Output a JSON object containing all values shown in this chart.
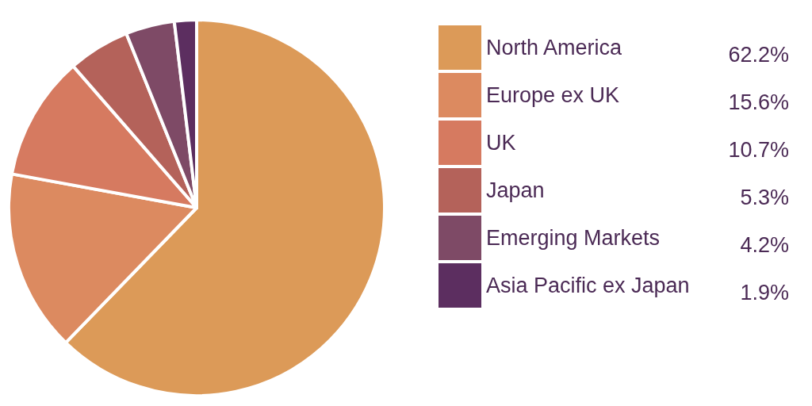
{
  "chart_data": {
    "type": "pie",
    "categories": [
      "North America",
      "Europe ex UK",
      "UK",
      "Japan",
      "Emerging Markets",
      "Asia Pacific ex Japan"
    ],
    "values": [
      62.2,
      15.6,
      10.7,
      5.3,
      4.2,
      1.9
    ],
    "colors": [
      "#dc9a58",
      "#dc8a60",
      "#d67a60",
      "#b4625a",
      "#7e4a66",
      "#5c2e60"
    ],
    "value_labels": [
      "62.2%",
      "15.6%",
      "10.7%",
      "5.3%",
      "4.2%",
      "1.9%"
    ],
    "legend": "right"
  }
}
